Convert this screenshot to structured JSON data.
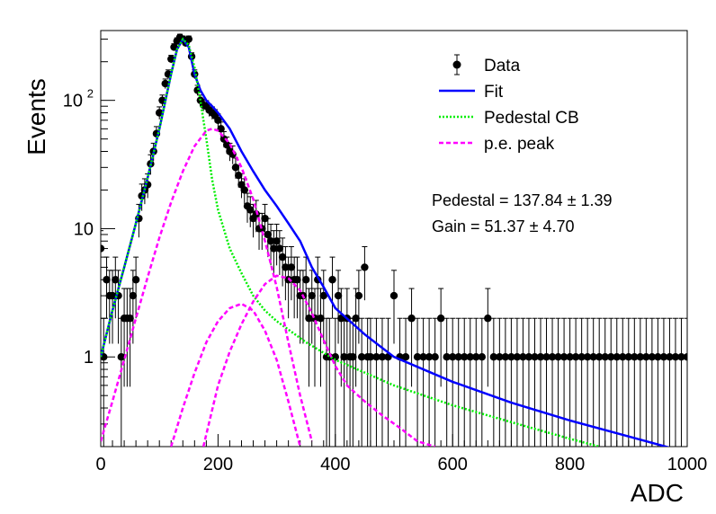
{
  "chart_data": {
    "type": "scatter",
    "title": "",
    "xlabel": "ADC",
    "ylabel": "Events",
    "xlim": [
      0,
      1000
    ],
    "ylim": [
      0.2,
      350
    ],
    "yscale": "log",
    "grid": false,
    "legend_position": "top-right",
    "x_ticks": [
      0,
      200,
      400,
      600,
      800,
      1000
    ],
    "y_ticks": [
      {
        "value": 1,
        "label": "1",
        "sup": ""
      },
      {
        "value": 10,
        "label": "10",
        "sup": ""
      },
      {
        "value": 100,
        "label": "10",
        "sup": "2"
      }
    ],
    "legend": [
      {
        "label": "Data",
        "style": "marker",
        "color": "#000000"
      },
      {
        "label": "Fit",
        "style": "solid",
        "color": "#0000ff"
      },
      {
        "label": "Pedestal CB",
        "style": "dotted",
        "color": "#00ee00"
      },
      {
        "label": "p.e. peak",
        "style": "dashed",
        "color": "#ff00ff"
      }
    ],
    "annotations": [
      "Pedestal = 137.84 ± 1.39",
      "Gain = 51.37 ± 4.70"
    ],
    "data_points": {
      "x": [
        0,
        5,
        10,
        15,
        20,
        25,
        30,
        35,
        40,
        45,
        50,
        55,
        60,
        65,
        70,
        75,
        80,
        85,
        90,
        95,
        100,
        105,
        110,
        115,
        120,
        125,
        130,
        135,
        140,
        145,
        150,
        155,
        160,
        165,
        170,
        175,
        180,
        185,
        190,
        195,
        200,
        205,
        210,
        215,
        220,
        225,
        230,
        235,
        240,
        245,
        250,
        255,
        260,
        265,
        270,
        275,
        280,
        285,
        290,
        295,
        300,
        305,
        310,
        315,
        320,
        325,
        330,
        335,
        340,
        345,
        350,
        355,
        360,
        365,
        370,
        375,
        380,
        385,
        390,
        395,
        400,
        405,
        410,
        415,
        420,
        425,
        430,
        435,
        440,
        445,
        450,
        455,
        460,
        470,
        480,
        490,
        500,
        510,
        520,
        530,
        540,
        550,
        560,
        570,
        580,
        590,
        600,
        610,
        620,
        630,
        640,
        650,
        660,
        670,
        680,
        690,
        700,
        710,
        720,
        730,
        740,
        750,
        760,
        770,
        780,
        790,
        800,
        810,
        820,
        830,
        840,
        850,
        860,
        870,
        880,
        890,
        900,
        910,
        920,
        930,
        940,
        950,
        960,
        970,
        980,
        990,
        1000
      ],
      "y": [
        7,
        1,
        4,
        3,
        3,
        4,
        3,
        1,
        2,
        2,
        2,
        3,
        4,
        12,
        18,
        20,
        22,
        32,
        40,
        55,
        80,
        100,
        135,
        160,
        210,
        260,
        290,
        310,
        300,
        280,
        300,
        220,
        160,
        120,
        100,
        92,
        90,
        84,
        80,
        76,
        70,
        60,
        50,
        45,
        40,
        38,
        30,
        26,
        22,
        20,
        15,
        14,
        12,
        13,
        10,
        10,
        12,
        9,
        8,
        7,
        8,
        7,
        6,
        5,
        4,
        5,
        4,
        4,
        3,
        3,
        4,
        2,
        3,
        2,
        4,
        2,
        3,
        1,
        1,
        4,
        1,
        3,
        2,
        1,
        2,
        1,
        1,
        2,
        3,
        1,
        5,
        1,
        1,
        1,
        1,
        1,
        3,
        1,
        1,
        2,
        1,
        1,
        1,
        1,
        2,
        1,
        1,
        1,
        1,
        1,
        1,
        1,
        2,
        1,
        1,
        1,
        1,
        1,
        1,
        1,
        1,
        1,
        1,
        1,
        1,
        1,
        1,
        1,
        1,
        1,
        1,
        1,
        1,
        1,
        1,
        1,
        1,
        1,
        1,
        1,
        1,
        1,
        1,
        1,
        1,
        1,
        1
      ],
      "color": "#000000"
    },
    "series": [
      {
        "name": "Fit",
        "color": "#0000ff",
        "x": [
          0,
          20,
          40,
          60,
          80,
          100,
          120,
          130,
          140,
          150,
          160,
          170,
          180,
          190,
          200,
          220,
          240,
          260,
          280,
          300,
          320,
          340,
          360,
          380,
          400,
          450,
          500,
          600,
          700,
          800,
          900,
          1000
        ],
        "y": [
          1,
          2.3,
          5,
          11,
          25,
          60,
          160,
          250,
          300,
          260,
          160,
          120,
          100,
          90,
          80,
          60,
          40,
          28,
          20,
          15,
          11,
          8,
          5,
          3.5,
          2.4,
          1.5,
          1.0,
          0.64,
          0.44,
          0.32,
          0.24,
          0.18
        ]
      },
      {
        "name": "Pedestal CB",
        "color": "#00ee00",
        "x": [
          0,
          20,
          40,
          60,
          80,
          100,
          120,
          130,
          140,
          150,
          160,
          170,
          180,
          190,
          200,
          220,
          240,
          260,
          280,
          300,
          350,
          400,
          500,
          600,
          700,
          800,
          850
        ],
        "y": [
          1,
          2.3,
          5,
          11,
          25,
          60,
          160,
          250,
          300,
          270,
          180,
          100,
          50,
          24,
          14,
          7,
          4.5,
          3,
          2.3,
          1.9,
          1.3,
          0.95,
          0.6,
          0.42,
          0.31,
          0.23,
          0.2
        ]
      },
      {
        "name": "p.e. peak",
        "color": "#ff00ff",
        "x": [
          0,
          20,
          40,
          60,
          80,
          100,
          120,
          140,
          160,
          180,
          190,
          200,
          220,
          240,
          260,
          280,
          300,
          320,
          340,
          360
        ],
        "y": [
          0.22,
          0.45,
          0.95,
          2,
          4.2,
          8.5,
          16,
          28,
          44,
          58,
          60,
          58,
          46,
          30,
          17,
          8,
          3.5,
          1.3,
          0.5,
          0.22
        ]
      },
      {
        "name": "",
        "color": "#ff00ff",
        "x": [
          120,
          140,
          160,
          180,
          200,
          220,
          240,
          260,
          280,
          300,
          320,
          340
        ],
        "y": [
          0.2,
          0.4,
          0.75,
          1.3,
          1.9,
          2.4,
          2.6,
          2.3,
          1.6,
          0.95,
          0.45,
          0.2
        ]
      },
      {
        "name": "",
        "color": "#ff00ff",
        "x": [
          175,
          200,
          220,
          240,
          260,
          280,
          300,
          320,
          340,
          360,
          380,
          400,
          420,
          450,
          480,
          510,
          540,
          570
        ],
        "y": [
          0.2,
          0.6,
          1.1,
          1.8,
          2.7,
          3.7,
          4.3,
          4.1,
          3.3,
          2.2,
          1.35,
          0.85,
          0.6,
          0.45,
          0.35,
          0.28,
          0.22,
          0.2
        ]
      }
    ]
  }
}
